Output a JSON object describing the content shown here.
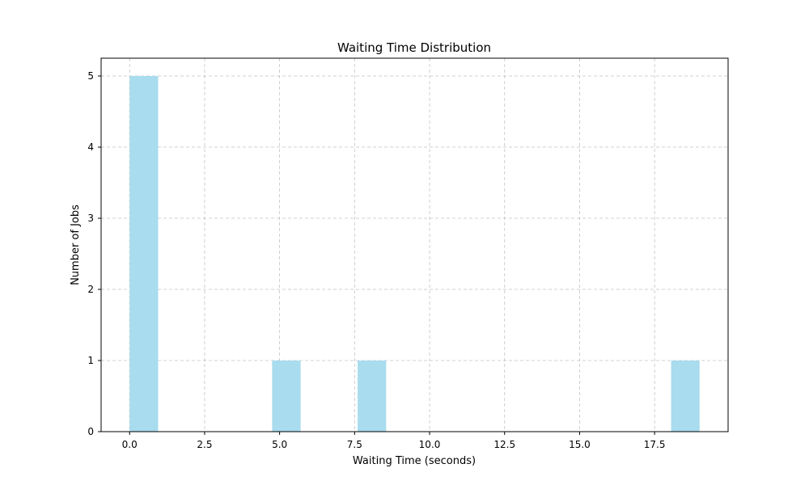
{
  "chart_data": {
    "type": "bar",
    "title": "Waiting Time Distribution",
    "xlabel": "Waiting Time (seconds)",
    "ylabel": "Number of Jobs",
    "xlim": [
      -0.95,
      19.95
    ],
    "ylim": [
      0,
      5.25
    ],
    "x_ticks": [
      0,
      2.5,
      5,
      7.5,
      10,
      12.5,
      15,
      17.5
    ],
    "x_tick_labels": [
      "0.0",
      "2.5",
      "5.0",
      "7.5",
      "10.0",
      "12.5",
      "15.0",
      "17.5"
    ],
    "y_ticks": [
      0,
      1,
      2,
      3,
      4,
      5
    ],
    "y_tick_labels": [
      "0",
      "1",
      "2",
      "3",
      "4",
      "5"
    ],
    "grid": true,
    "bar_color": "#a8dcee",
    "bins": [
      {
        "start": 0.0,
        "end": 0.95,
        "count": 5
      },
      {
        "start": 4.75,
        "end": 5.7,
        "count": 1
      },
      {
        "start": 7.6,
        "end": 8.55,
        "count": 1
      },
      {
        "start": 18.05,
        "end": 19.0,
        "count": 1
      }
    ]
  }
}
